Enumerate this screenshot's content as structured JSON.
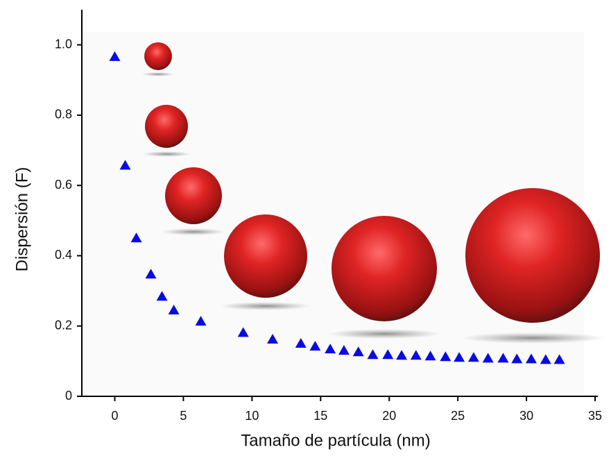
{
  "chart_data": {
    "type": "scatter",
    "x_label": "Tamaño de partícula (nm)",
    "y_label": "Dispersión (F)",
    "x": [
      0,
      0.76,
      1.57,
      2.63,
      3.44,
      4.3,
      6.27,
      9.36,
      11.5,
      13.56,
      14.6,
      15.7,
      16.7,
      17.75,
      18.8,
      19.9,
      20.9,
      21.95,
      23.0,
      24.1,
      25.1,
      26.15,
      27.2,
      28.3,
      29.3,
      30.35,
      31.4,
      32.4
    ],
    "values": [
      0.966,
      0.657,
      0.45,
      0.347,
      0.284,
      0.245,
      0.213,
      0.181,
      0.162,
      0.15,
      0.142,
      0.134,
      0.13,
      0.126,
      0.118,
      0.118,
      0.116,
      0.116,
      0.114,
      0.112,
      0.11,
      0.11,
      0.108,
      0.108,
      0.106,
      0.106,
      0.104,
      0.104
    ],
    "color": "#0a0ae6",
    "xlim": [
      -2.4,
      35.2
    ],
    "xticks": [
      0,
      5,
      10,
      15,
      20,
      25,
      30,
      35
    ],
    "ylim": [
      0,
      1.1
    ],
    "yticks": [
      0,
      0.2,
      0.4,
      0.6,
      0.8,
      {
        "value": 1,
        "label": "1.0"
      }
    ],
    "grid": false
  }
}
